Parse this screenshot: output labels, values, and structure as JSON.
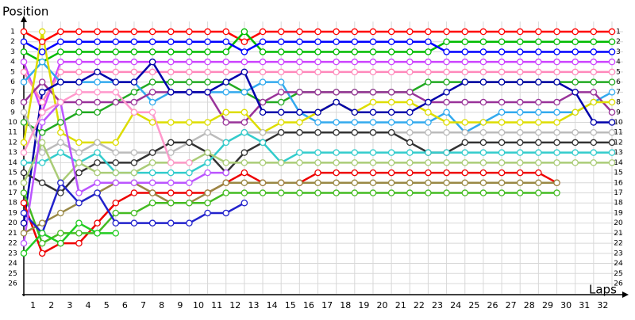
{
  "chart_data": {
    "type": "lapchart",
    "y_label": "Position",
    "x_label": "Laps",
    "x": [
      0,
      1,
      2,
      3,
      4,
      5,
      6,
      7,
      8,
      9,
      10,
      11,
      12,
      13,
      14,
      15,
      16,
      17,
      18,
      19,
      20,
      21,
      22,
      23,
      24,
      25,
      26,
      27,
      28,
      29,
      30,
      31,
      32
    ],
    "xlim": [
      0,
      32
    ],
    "xticks": [
      {
        "value": 0.5,
        "label": "1"
      },
      {
        "value": 1.5,
        "label": "2"
      },
      {
        "value": 2.5,
        "label": "3"
      },
      {
        "value": 3.5,
        "label": "4"
      },
      {
        "value": 4.5,
        "label": "5"
      },
      {
        "value": 5.5,
        "label": "6"
      },
      {
        "value": 6.5,
        "label": "7"
      },
      {
        "value": 7.5,
        "label": "8"
      },
      {
        "value": 8.5,
        "label": "9"
      },
      {
        "value": 9.5,
        "label": "10"
      },
      {
        "value": 10.5,
        "label": "11"
      },
      {
        "value": 11.5,
        "label": "12"
      },
      {
        "value": 12.5,
        "label": "13"
      },
      {
        "value": 13.5,
        "label": "14"
      },
      {
        "value": 14.5,
        "label": "15"
      },
      {
        "value": 15.5,
        "label": "16"
      },
      {
        "value": 16.5,
        "label": "17"
      },
      {
        "value": 17.5,
        "label": "18"
      },
      {
        "value": 18.5,
        "label": "19"
      },
      {
        "value": 19.5,
        "label": "20"
      },
      {
        "value": 20.5,
        "label": "21"
      },
      {
        "value": 21.5,
        "label": "22"
      },
      {
        "value": 22.5,
        "label": "23"
      },
      {
        "value": 23.5,
        "label": "24"
      },
      {
        "value": 24.5,
        "label": "25"
      },
      {
        "value": 25.5,
        "label": "26"
      },
      {
        "value": 26.5,
        "label": "27"
      },
      {
        "value": 27.5,
        "label": "28"
      },
      {
        "value": 28.5,
        "label": "29"
      },
      {
        "value": 29.5,
        "label": "30"
      },
      {
        "value": 30.5,
        "label": "31"
      },
      {
        "value": 31.5,
        "label": "32"
      }
    ],
    "ylim": [
      0,
      27
    ],
    "y_inverted": true,
    "yticks": [
      1,
      2,
      3,
      4,
      5,
      6,
      7,
      8,
      9,
      10,
      11,
      12,
      13,
      14,
      15,
      16,
      17,
      18,
      19,
      20,
      21,
      22,
      23,
      24,
      25,
      26
    ],
    "grid": true,
    "series": [
      {
        "color": "#ff0000",
        "values": [
          1,
          2,
          1,
          1,
          1,
          1,
          1,
          1,
          1,
          1,
          1,
          1,
          2,
          1,
          1,
          1,
          1,
          1,
          1,
          1,
          1,
          1,
          1,
          1,
          1,
          1,
          1,
          1,
          1,
          1,
          1,
          1,
          1
        ]
      },
      {
        "color": "#00bb00",
        "values": [
          3,
          4,
          3,
          3,
          3,
          3,
          3,
          3,
          3,
          3,
          3,
          3,
          1,
          3,
          3,
          3,
          3,
          3,
          3,
          3,
          3,
          3,
          3,
          2,
          2,
          2,
          2,
          2,
          2,
          2,
          2,
          2,
          2
        ]
      },
      {
        "color": "#0000ff",
        "values": [
          2,
          3,
          2,
          2,
          2,
          2,
          2,
          2,
          2,
          2,
          2,
          2,
          3,
          2,
          2,
          2,
          2,
          2,
          2,
          2,
          2,
          2,
          2,
          3,
          3,
          3,
          3,
          3,
          3,
          3,
          3,
          3,
          3
        ]
      },
      {
        "color": "#cc44ff",
        "values": [
          4,
          9,
          4,
          4,
          4,
          4,
          4,
          4,
          4,
          4,
          4,
          4,
          4,
          4,
          4,
          4,
          4,
          4,
          4,
          4,
          4,
          4,
          4,
          4,
          4,
          4,
          4,
          4,
          4,
          4,
          4,
          4,
          4
        ]
      },
      {
        "color": "#ff88bb",
        "values": [
          5,
          8,
          5,
          5,
          5,
          5,
          5,
          5,
          5,
          5,
          5,
          5,
          5,
          5,
          5,
          5,
          5,
          5,
          5,
          5,
          5,
          5,
          5,
          5,
          5,
          5,
          5,
          5,
          5,
          5,
          5,
          5,
          5
        ]
      },
      {
        "color": "#22aa22",
        "values": [
          10,
          11,
          10,
          9,
          9,
          8,
          7,
          6,
          6,
          6,
          6,
          6,
          7,
          8,
          8,
          7,
          7,
          7,
          7,
          7,
          7,
          7,
          6,
          6,
          6,
          6,
          6,
          6,
          6,
          6,
          6,
          6,
          6
        ]
      },
      {
        "color": "#33aaee",
        "values": [
          6,
          4,
          6,
          6,
          6,
          6,
          6,
          8,
          7,
          7,
          7,
          7,
          7,
          6,
          6,
          9,
          10,
          10,
          10,
          10,
          10,
          10,
          10,
          9,
          11,
          10,
          9,
          9,
          9,
          9,
          9,
          8,
          7
        ]
      },
      {
        "color": "#993399",
        "values": [
          8,
          6,
          8,
          8,
          8,
          8,
          8,
          7,
          7,
          7,
          7,
          10,
          10,
          8,
          7,
          7,
          7,
          7,
          7,
          7,
          7,
          7,
          8,
          8,
          8,
          8,
          8,
          8,
          8,
          8,
          7,
          7,
          9
        ]
      },
      {
        "color": "#dddd00",
        "values": [
          12,
          1,
          11,
          12,
          12,
          12,
          9,
          10,
          10,
          10,
          10,
          9,
          9,
          11,
          10,
          10,
          9,
          8,
          9,
          8,
          8,
          8,
          9,
          10,
          10,
          10,
          10,
          10,
          10,
          10,
          9,
          8,
          8
        ]
      },
      {
        "color": "#0000aa",
        "values": [
          20,
          7,
          6,
          6,
          5,
          6,
          6,
          4,
          7,
          7,
          7,
          6,
          5,
          9,
          9,
          9,
          9,
          8,
          9,
          9,
          9,
          9,
          8,
          7,
          6,
          6,
          6,
          6,
          6,
          6,
          7,
          10,
          10
        ]
      },
      {
        "color": "#bbbbbb",
        "values": [
          9,
          13,
          12,
          13,
          12,
          13,
          13,
          13,
          13,
          12,
          11,
          12,
          11,
          11,
          11,
          11,
          11,
          11,
          11,
          11,
          11,
          11,
          11,
          11,
          11,
          11,
          11,
          11,
          11,
          11,
          11,
          11,
          11
        ]
      },
      {
        "color": "#333333",
        "values": [
          15,
          16,
          17,
          15,
          14,
          14,
          14,
          13,
          12,
          12,
          13,
          15,
          13,
          12,
          11,
          11,
          11,
          11,
          11,
          11,
          11,
          12,
          13,
          13,
          12,
          12,
          12,
          12,
          12,
          12,
          12,
          12,
          12
        ]
      },
      {
        "color": "#33cccc",
        "values": [
          14,
          14,
          13,
          14,
          13,
          15,
          15,
          15,
          15,
          15,
          14,
          12,
          11,
          12,
          14,
          13,
          13,
          13,
          13,
          13,
          13,
          13,
          13,
          13,
          13,
          13,
          13,
          13,
          13,
          13,
          13,
          13,
          13
        ]
      },
      {
        "color": "#aacc77",
        "values": [
          16,
          12,
          16,
          14,
          15,
          15,
          15,
          14,
          14,
          14,
          13,
          14,
          14,
          14,
          14,
          14,
          14,
          14,
          14,
          14,
          14,
          14,
          14,
          14,
          14,
          14,
          14,
          14,
          14,
          14,
          14,
          14,
          14
        ]
      },
      {
        "color": "#ee0000",
        "values": [
          18,
          23,
          22,
          22,
          20,
          18,
          17,
          17,
          17,
          17,
          17,
          16,
          15,
          16,
          16,
          16,
          15,
          15,
          15,
          15,
          15,
          15,
          15,
          15,
          15,
          15,
          15,
          15,
          15,
          16,
          null,
          null,
          null
        ]
      },
      {
        "color": "#998844",
        "values": [
          21,
          20,
          19,
          18,
          17,
          16,
          16,
          17,
          18,
          18,
          17,
          16,
          16,
          16,
          16,
          16,
          16,
          16,
          16,
          16,
          16,
          16,
          16,
          16,
          16,
          16,
          16,
          16,
          16,
          16,
          null,
          null,
          null
        ]
      },
      {
        "color": "#44bb22",
        "values": [
          17,
          22,
          21,
          21,
          21,
          19,
          19,
          18,
          18,
          18,
          18,
          17,
          17,
          17,
          17,
          17,
          17,
          17,
          17,
          17,
          17,
          17,
          17,
          17,
          17,
          17,
          17,
          17,
          17,
          17,
          null,
          null,
          null
        ]
      },
      {
        "color": "#2222cc",
        "values": [
          19,
          21,
          16,
          18,
          17,
          20,
          20,
          20,
          20,
          20,
          19,
          19,
          18,
          null,
          null,
          null,
          null,
          null,
          null,
          null,
          null,
          null,
          null,
          null,
          null,
          null,
          null,
          null,
          null,
          null,
          null,
          null,
          null
        ]
      },
      {
        "color": "#bb55ff",
        "values": [
          22,
          10,
          8,
          17,
          16,
          16,
          16,
          16,
          16,
          16,
          15,
          15,
          null,
          null,
          null,
          null,
          null,
          null,
          null,
          null,
          null,
          null,
          null,
          null,
          null,
          null,
          null,
          null,
          null,
          null,
          null,
          null,
          null
        ]
      },
      {
        "color": "#ff99cc",
        "values": [
          13,
          9,
          8,
          7,
          7,
          7,
          9,
          9,
          14,
          14,
          null,
          null,
          null,
          null,
          null,
          null,
          null,
          null,
          null,
          null,
          null,
          null,
          null,
          null,
          null,
          null,
          null,
          null,
          null,
          null,
          null,
          null,
          null
        ]
      },
      {
        "color": "#22cc22",
        "values": [
          23,
          21,
          22,
          20,
          21,
          21,
          null,
          null,
          null,
          null,
          null,
          null,
          null,
          null,
          null,
          null,
          null,
          null,
          null,
          null,
          null,
          null,
          null,
          null,
          null,
          null,
          null,
          null,
          null,
          null,
          null,
          null,
          null
        ]
      }
    ]
  }
}
